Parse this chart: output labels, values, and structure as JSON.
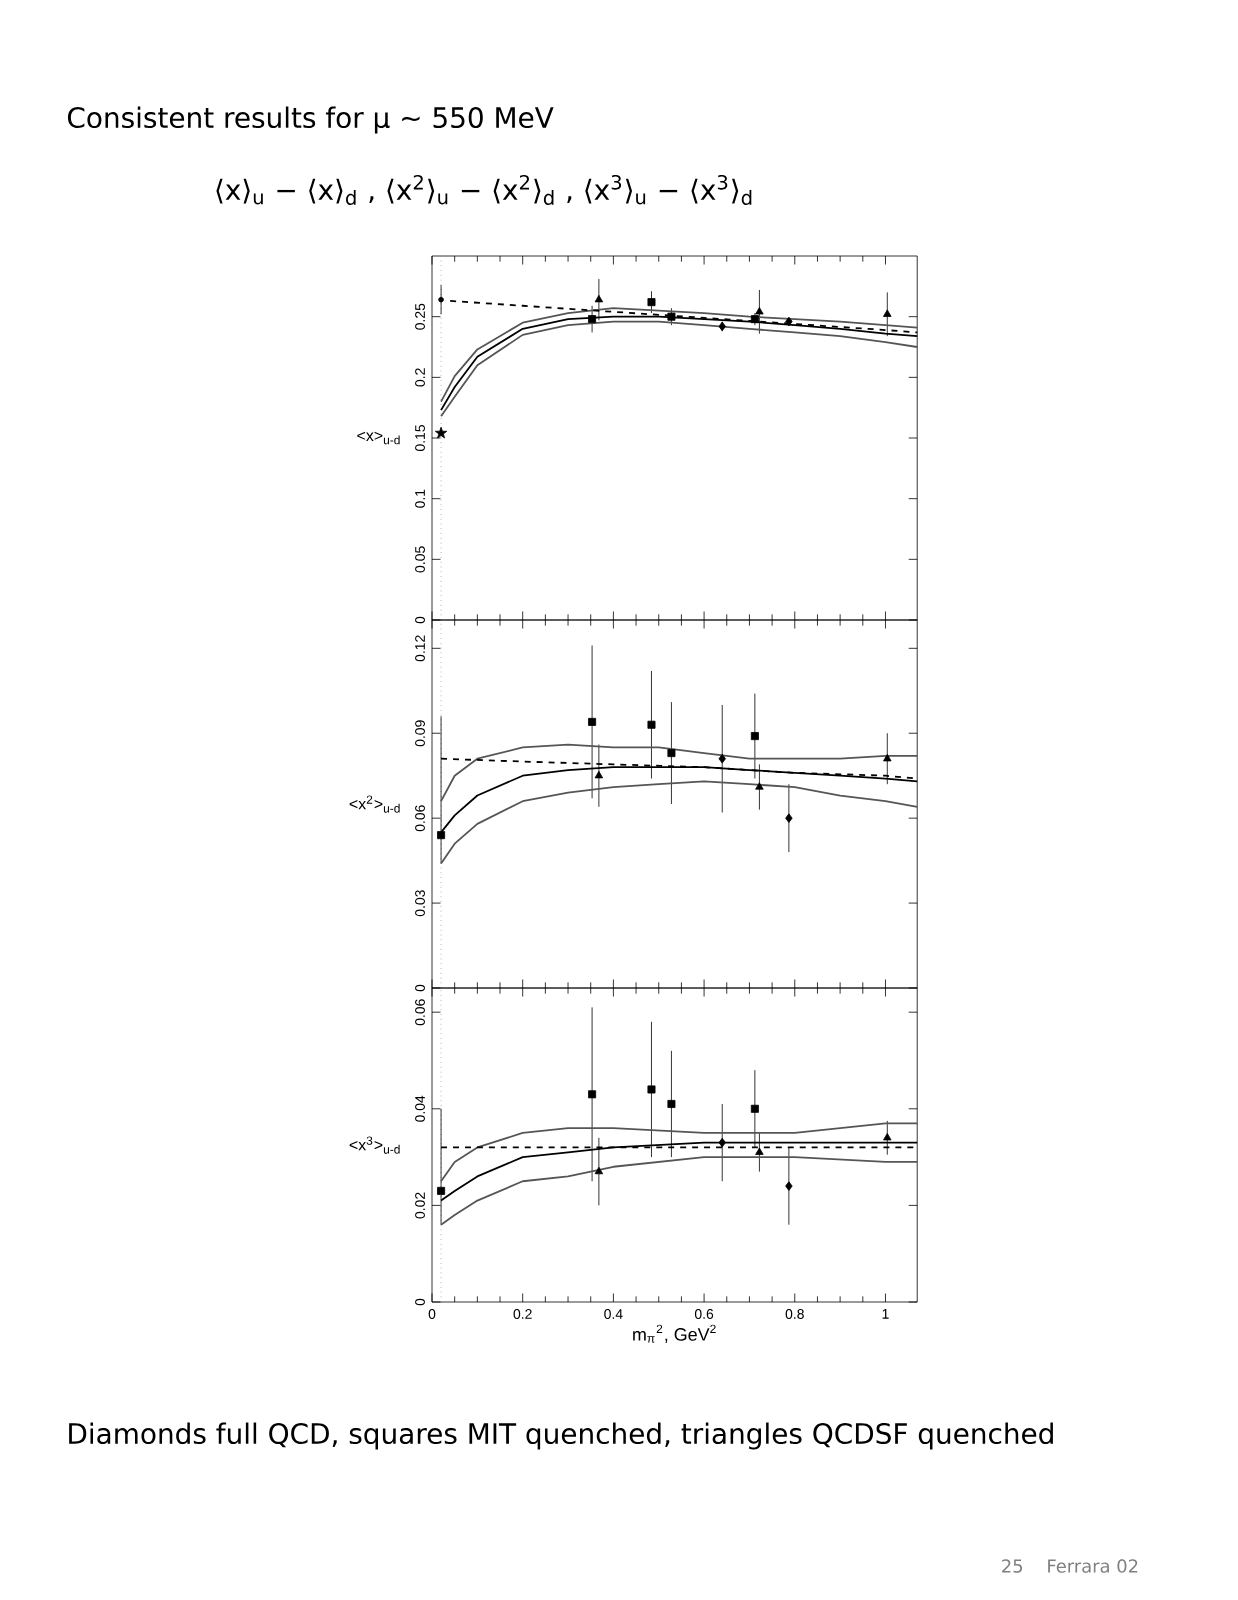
{
  "chart_data": [
    {
      "type": "scatter",
      "title": "Consistent results for μ ∼ 550 MeV",
      "subtitle": "⟨x⟩$_{u}$ − ⟨x⟩$_{d}$ ,   ⟨x$^{2}$⟩$_{u}$ − ⟨x$^{2}$⟩$_{d}$ ,   ⟨x$^{3}$⟩$_{u}$ − ⟨x$^{3}$⟩$_{d}$",
      "ylabel": "<x>$_{u-d}$",
      "xlim": [
        0,
        1.07
      ],
      "ylim": [
        0,
        0.3
      ],
      "xticks": [
        0,
        0.2,
        0.4,
        0.6,
        0.8,
        1
      ],
      "yticks": [
        0,
        0.05,
        0.1,
        0.15,
        0.2,
        0.25
      ],
      "tick_labels": "y",
      "grid": false,
      "ref_lines": [
        {
          "axis": "x",
          "value": 0.02,
          "line_style": "dotted",
          "color": "#888888"
        }
      ],
      "series": [
        {
          "marker": "square",
          "color": "#000000",
          "x": [
            0.353,
            0.484,
            0.528,
            0.712
          ],
          "values": [
            0.248,
            0.262,
            0.25,
            0.248
          ],
          "errors": [
            0.011,
            0.009,
            0.007,
            0.005
          ]
        },
        {
          "marker": "diamond",
          "color": "#000000",
          "x": [
            0.64,
            0.787
          ],
          "values": [
            0.242,
            0.246
          ],
          "errors": [
            0.004,
            0.003
          ]
        },
        {
          "marker": "triangle",
          "color": "#000000",
          "x": [
            0.368,
            0.722,
            1.004
          ],
          "values": [
            0.264,
            0.254,
            0.252
          ],
          "errors": [
            0.017,
            0.018,
            0.018
          ]
        },
        {
          "marker": "circle",
          "color": "#000000",
          "x": [
            0.02
          ],
          "values": [
            0.264
          ],
          "errors": [
            0.012
          ]
        },
        {
          "marker": "star",
          "color": "#000000",
          "x": [
            0.02
          ],
          "values": [
            0.154
          ]
        },
        {
          "type": "line",
          "color": "#000000",
          "x": [
            0.02,
            0.05,
            0.1,
            0.2,
            0.3,
            0.4,
            0.5,
            0.6,
            0.7,
            0.8,
            0.9,
            1.0,
            1.07
          ],
          "values": [
            0.173,
            0.192,
            0.217,
            0.24,
            0.248,
            0.25,
            0.25,
            0.248,
            0.246,
            0.243,
            0.24,
            0.236,
            0.234
          ]
        },
        {
          "type": "line",
          "color": "#555555",
          "x": [
            0.02,
            0.05,
            0.1,
            0.2,
            0.3,
            0.4,
            0.5,
            0.6,
            0.7,
            0.8,
            0.9,
            1.0,
            1.07
          ],
          "values": [
            0.18,
            0.201,
            0.223,
            0.245,
            0.253,
            0.257,
            0.255,
            0.253,
            0.25,
            0.248,
            0.246,
            0.243,
            0.241
          ]
        },
        {
          "type": "line",
          "color": "#555555",
          "x": [
            0.02,
            0.05,
            0.1,
            0.2,
            0.3,
            0.4,
            0.5,
            0.6,
            0.7,
            0.8,
            0.9,
            1.0,
            1.07
          ],
          "values": [
            0.168,
            0.184,
            0.21,
            0.235,
            0.243,
            0.246,
            0.246,
            0.243,
            0.24,
            0.237,
            0.234,
            0.229,
            0.225
          ]
        },
        {
          "type": "line",
          "line_style": "dashed",
          "color": "#000000",
          "x": [
            0.04,
            0.2,
            0.4,
            0.6,
            0.8,
            1.0,
            1.07
          ],
          "values": [
            0.263,
            0.259,
            0.254,
            0.249,
            0.244,
            0.239,
            0.237
          ]
        }
      ]
    },
    {
      "type": "scatter",
      "ylabel": "<x$^{2}$>$_{u-d}$",
      "xlim": [
        0,
        1.07
      ],
      "ylim": [
        0,
        0.13
      ],
      "xticks": [
        0,
        0.2,
        0.4,
        0.6,
        0.8,
        1
      ],
      "yticks": [
        0,
        0.03,
        0.06,
        0.09,
        0.12
      ],
      "tick_labels": "y",
      "grid": false,
      "ref_lines": [
        {
          "axis": "x",
          "value": 0.02,
          "line_style": "dotted",
          "color": "#888888"
        }
      ],
      "series": [
        {
          "marker": "square",
          "color": "#000000",
          "x": [
            0.353,
            0.484,
            0.528,
            0.712
          ],
          "values": [
            0.094,
            0.093,
            0.083,
            0.089
          ],
          "errors": [
            0.027,
            0.019,
            0.018,
            0.015
          ]
        },
        {
          "marker": "diamond",
          "color": "#000000",
          "x": [
            0.64,
            0.787
          ],
          "values": [
            0.081,
            0.06
          ],
          "errors": [
            0.019,
            0.012
          ]
        },
        {
          "marker": "triangle",
          "color": "#000000",
          "x": [
            0.368,
            0.722,
            1.004
          ],
          "values": [
            0.075,
            0.071,
            0.081
          ],
          "errors": [
            0.011,
            0.008,
            0.009
          ]
        },
        {
          "marker": "square",
          "color": "#000000",
          "x": [
            0.02
          ],
          "values": [
            0.054
          ],
          "errors": [
            [
              0.044,
              0.096
            ]
          ]
        },
        {
          "type": "line",
          "color": "#000000",
          "x": [
            0.02,
            0.05,
            0.1,
            0.2,
            0.3,
            0.4,
            0.5,
            0.6,
            0.7,
            0.8,
            0.9,
            1.0,
            1.07
          ],
          "values": [
            0.055,
            0.061,
            0.068,
            0.075,
            0.077,
            0.078,
            0.078,
            0.078,
            0.077,
            0.076,
            0.075,
            0.074,
            0.073
          ]
        },
        {
          "type": "line",
          "color": "#555555",
          "x": [
            0.02,
            0.05,
            0.1,
            0.2,
            0.3,
            0.4,
            0.5,
            0.6,
            0.7,
            0.8,
            0.9,
            1.0,
            1.07
          ],
          "values": [
            0.066,
            0.075,
            0.081,
            0.085,
            0.086,
            0.085,
            0.085,
            0.083,
            0.081,
            0.081,
            0.081,
            0.082,
            0.082
          ]
        },
        {
          "type": "line",
          "color": "#555555",
          "x": [
            0.02,
            0.05,
            0.1,
            0.2,
            0.3,
            0.4,
            0.5,
            0.6,
            0.7,
            0.8,
            0.9,
            1.0,
            1.07
          ],
          "values": [
            0.044,
            0.051,
            0.058,
            0.066,
            0.069,
            0.071,
            0.072,
            0.073,
            0.072,
            0.071,
            0.068,
            0.066,
            0.064
          ]
        },
        {
          "type": "line",
          "line_style": "dashed",
          "color": "#000000",
          "x": [
            0.02,
            0.2,
            0.4,
            0.6,
            0.8,
            1.0,
            1.07
          ],
          "values": [
            0.081,
            0.08,
            0.079,
            0.078,
            0.076,
            0.075,
            0.074
          ]
        }
      ]
    },
    {
      "type": "scatter",
      "xlabel": "m$_{π}$$^{2}$, GeV$^{2}$",
      "ylabel": "<x$^{3}$>$_{u-d}$",
      "xlim": [
        0,
        1.07
      ],
      "ylim": [
        0,
        0.065
      ],
      "xticks": [
        0,
        0.2,
        0.4,
        0.6,
        0.8,
        1
      ],
      "yticks": [
        0,
        0.02,
        0.04,
        0.06
      ],
      "grid": false,
      "ref_lines": [
        {
          "axis": "x",
          "value": 0.02,
          "line_style": "dotted",
          "color": "#888888"
        }
      ],
      "annotations": [
        "Diamonds full QCD, squares MIT quenched, triangles QCDSF quenched",
        "25",
        "Ferrara 02"
      ],
      "series": [
        {
          "marker": "square",
          "color": "#000000",
          "x": [
            0.353,
            0.484,
            0.528,
            0.712
          ],
          "values": [
            0.043,
            0.044,
            0.041,
            0.04
          ],
          "errors": [
            0.018,
            0.014,
            0.011,
            0.008
          ]
        },
        {
          "marker": "diamond",
          "color": "#000000",
          "x": [
            0.64,
            0.787
          ],
          "values": [
            0.033,
            0.024
          ],
          "errors": [
            0.008,
            0.008
          ]
        },
        {
          "marker": "triangle",
          "color": "#000000",
          "x": [
            0.368,
            0.722,
            1.004
          ],
          "values": [
            0.027,
            0.031,
            0.034
          ],
          "errors": [
            0.007,
            0.004,
            0.0035
          ]
        },
        {
          "marker": "square",
          "color": "#000000",
          "x": [
            0.02
          ],
          "values": [
            0.023
          ],
          "errors": [
            [
              0.016,
              0.04
            ]
          ]
        },
        {
          "type": "line",
          "color": "#000000",
          "x": [
            0.02,
            0.05,
            0.1,
            0.2,
            0.3,
            0.4,
            0.6,
            0.8,
            1.0,
            1.07
          ],
          "values": [
            0.021,
            0.023,
            0.026,
            0.03,
            0.031,
            0.032,
            0.033,
            0.033,
            0.033,
            0.033
          ]
        },
        {
          "type": "line",
          "color": "#555555",
          "x": [
            0.02,
            0.05,
            0.1,
            0.2,
            0.3,
            0.4,
            0.6,
            0.8,
            1.0,
            1.07
          ],
          "values": [
            0.025,
            0.029,
            0.032,
            0.035,
            0.036,
            0.036,
            0.035,
            0.035,
            0.037,
            0.037
          ]
        },
        {
          "type": "line",
          "color": "#555555",
          "x": [
            0.02,
            0.05,
            0.1,
            0.2,
            0.3,
            0.4,
            0.6,
            0.8,
            1.0,
            1.07
          ],
          "values": [
            0.016,
            0.018,
            0.021,
            0.025,
            0.026,
            0.028,
            0.03,
            0.03,
            0.029,
            0.029
          ]
        },
        {
          "type": "line",
          "line_style": "dashed",
          "color": "#000000",
          "x": [
            0.02,
            0.3,
            0.6,
            0.8,
            1.07
          ],
          "values": [
            0.032,
            0.032,
            0.032,
            0.032,
            0.032
          ]
        }
      ]
    }
  ]
}
